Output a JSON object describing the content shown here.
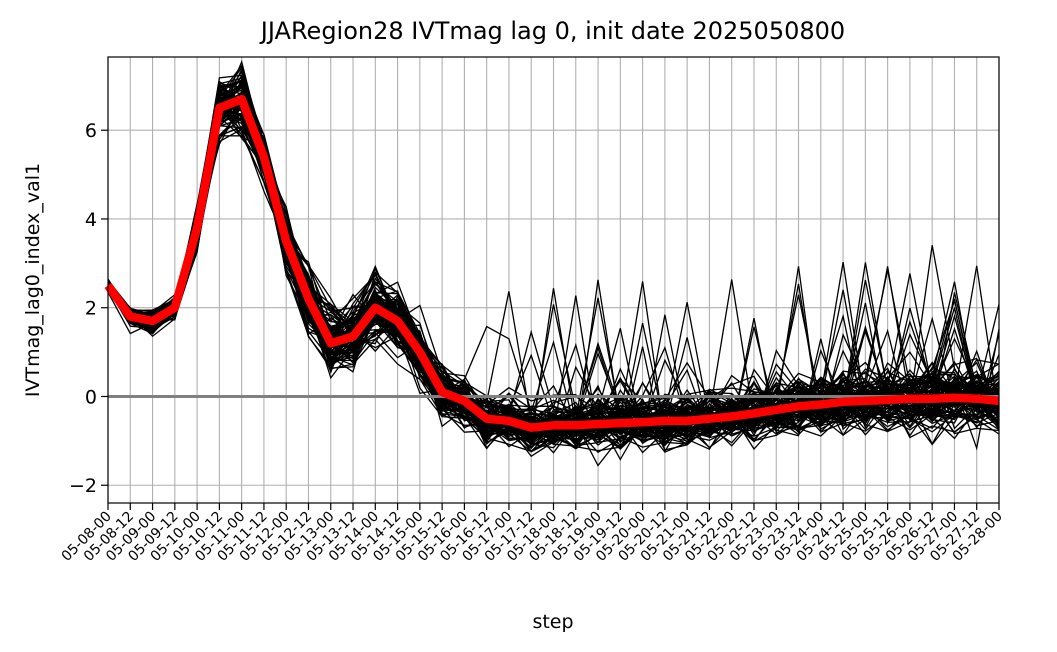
{
  "chart_data": {
    "type": "line",
    "title": "JJARegion28 IVTmag lag 0, init date 2025050800",
    "xlabel": "step",
    "ylabel": "IVTmag_lag0_index_val1",
    "categories": [
      "05-08-00",
      "05-08-12",
      "05-09-00",
      "05-09-12",
      "05-10-00",
      "05-10-12",
      "05-11-00",
      "05-11-12",
      "05-12-00",
      "05-12-12",
      "05-13-00",
      "05-13-12",
      "05-14-00",
      "05-14-12",
      "05-15-00",
      "05-15-12",
      "05-16-00",
      "05-16-12",
      "05-17-00",
      "05-17-12",
      "05-18-00",
      "05-18-12",
      "05-19-00",
      "05-19-12",
      "05-20-00",
      "05-20-12",
      "05-21-00",
      "05-21-12",
      "05-22-00",
      "05-22-12",
      "05-23-00",
      "05-23-12",
      "05-24-00",
      "05-24-12",
      "05-25-00",
      "05-25-12",
      "05-26-00",
      "05-26-12",
      "05-27-00",
      "05-27-12",
      "05-28-00"
    ],
    "ylim": [
      -2.4,
      7.65
    ],
    "yticks": [
      -2,
      0,
      2,
      4,
      6
    ],
    "grid": true,
    "reference_line": 0,
    "ensemble_member_count": 100,
    "ensemble_mean": [
      2.5,
      1.8,
      1.7,
      2.0,
      3.8,
      6.5,
      6.7,
      5.4,
      3.5,
      2.2,
      1.2,
      1.35,
      2.0,
      1.7,
      1.0,
      0.1,
      -0.1,
      -0.5,
      -0.55,
      -0.7,
      -0.65,
      -0.65,
      -0.62,
      -0.6,
      -0.58,
      -0.55,
      -0.55,
      -0.5,
      -0.45,
      -0.38,
      -0.3,
      -0.22,
      -0.18,
      -0.12,
      -0.1,
      -0.08,
      -0.05,
      -0.05,
      -0.03,
      -0.05,
      -0.1
    ],
    "ensemble_spread": [
      0.12,
      0.15,
      0.2,
      0.2,
      0.35,
      0.55,
      0.6,
      0.45,
      0.55,
      0.6,
      0.55,
      0.6,
      0.6,
      0.6,
      0.5,
      0.45,
      0.45,
      0.4,
      0.4,
      0.4,
      0.42,
      0.42,
      0.42,
      0.42,
      0.45,
      0.45,
      0.45,
      0.45,
      0.45,
      0.48,
      0.5,
      0.5,
      0.5,
      0.5,
      0.52,
      0.55,
      0.55,
      0.55,
      0.55,
      0.55,
      0.55
    ],
    "series_colors": {
      "members": "#000000",
      "mean": "#ff0000",
      "reference": "#808080",
      "grid": "#b0b0b0"
    }
  }
}
